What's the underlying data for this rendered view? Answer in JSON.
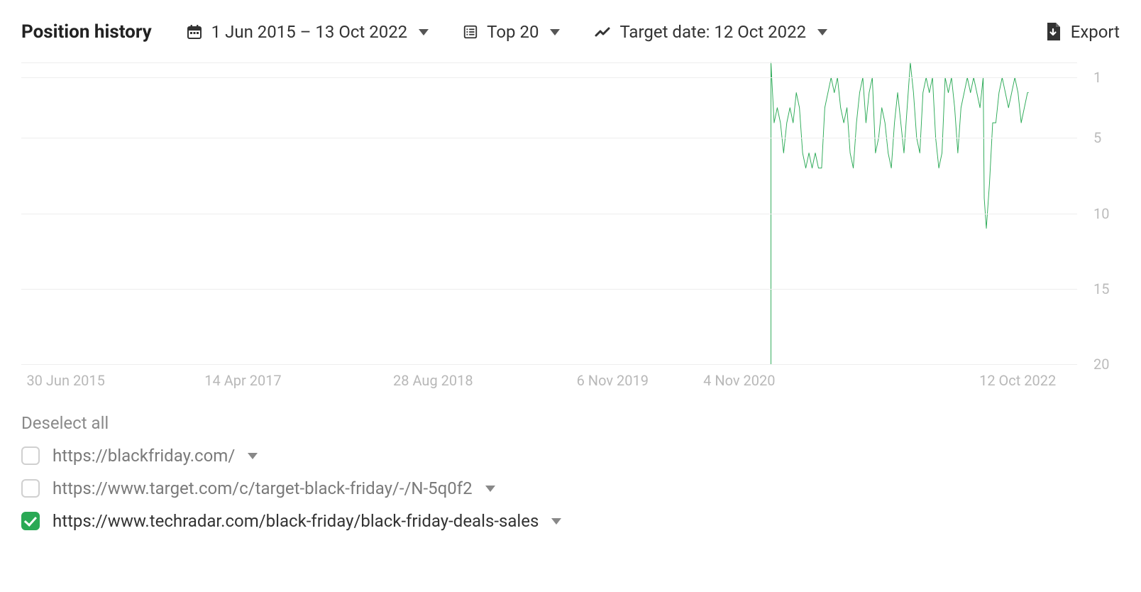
{
  "header": {
    "title": "Position history",
    "date_range_label": "1 Jun 2015 – 13 Oct 2022",
    "top_label": "Top 20",
    "target_date_label": "Target date: 12 Oct 2022",
    "export_label": "Export"
  },
  "chart": {
    "type": "line",
    "line_color": "#2aa955",
    "line_width": 4,
    "background_color": "#ffffff",
    "grid_color": "#eeeeee",
    "y_axis": {
      "inverted": true,
      "min": 0,
      "max": 20,
      "ticks": [
        1,
        5,
        10,
        15,
        20
      ]
    },
    "x_axis": {
      "min": 0,
      "max": 100,
      "tick_labels": [
        {
          "x": 0.5,
          "label": "30 Jun 2015",
          "align": "left"
        },
        {
          "x": 21,
          "label": "14 Apr 2017",
          "align": "center"
        },
        {
          "x": 39,
          "label": "28 Aug 2018",
          "align": "center"
        },
        {
          "x": 56,
          "label": "6 Nov 2019",
          "align": "center"
        },
        {
          "x": 68,
          "label": "4 Nov 2020",
          "align": "center"
        },
        {
          "x": 98,
          "label": "12 Oct 2022",
          "align": "right"
        }
      ]
    },
    "series": [
      {
        "name": "techradar",
        "color": "#2aa955",
        "points": [
          [
            71.0,
            20.0
          ],
          [
            71.0,
            0.0
          ],
          [
            71.3,
            4.0
          ],
          [
            71.6,
            3.0
          ],
          [
            71.9,
            4.0
          ],
          [
            72.2,
            6.0
          ],
          [
            72.5,
            4.0
          ],
          [
            72.8,
            3.0
          ],
          [
            73.1,
            4.0
          ],
          [
            73.4,
            2.0
          ],
          [
            73.7,
            3.0
          ],
          [
            74.0,
            6.0
          ],
          [
            74.3,
            7.0
          ],
          [
            74.6,
            6.0
          ],
          [
            74.9,
            7.0
          ],
          [
            75.2,
            6.0
          ],
          [
            75.5,
            7.0
          ],
          [
            75.8,
            7.0
          ],
          [
            76.1,
            3.0
          ],
          [
            76.4,
            2.0
          ],
          [
            76.7,
            1.0
          ],
          [
            77.0,
            2.0
          ],
          [
            77.3,
            1.0
          ],
          [
            77.6,
            3.0
          ],
          [
            77.9,
            4.0
          ],
          [
            78.2,
            3.0
          ],
          [
            78.5,
            6.0
          ],
          [
            78.8,
            7.0
          ],
          [
            79.1,
            4.0
          ],
          [
            79.4,
            2.0
          ],
          [
            79.7,
            1.0
          ],
          [
            80.0,
            4.0
          ],
          [
            80.3,
            2.0
          ],
          [
            80.6,
            1.0
          ],
          [
            80.9,
            6.0
          ],
          [
            81.2,
            5.0
          ],
          [
            81.5,
            3.0
          ],
          [
            81.8,
            4.0
          ],
          [
            82.1,
            6.0
          ],
          [
            82.4,
            7.0
          ],
          [
            82.7,
            4.0
          ],
          [
            83.0,
            2.0
          ],
          [
            83.3,
            4.0
          ],
          [
            83.6,
            6.0
          ],
          [
            83.9,
            3.0
          ],
          [
            84.2,
            0.0
          ],
          [
            84.5,
            2.0
          ],
          [
            84.8,
            5.0
          ],
          [
            85.1,
            6.0
          ],
          [
            85.4,
            2.0
          ],
          [
            85.7,
            1.0
          ],
          [
            86.0,
            2.0
          ],
          [
            86.3,
            1.0
          ],
          [
            86.6,
            5.0
          ],
          [
            86.9,
            7.0
          ],
          [
            87.2,
            6.0
          ],
          [
            87.5,
            1.0
          ],
          [
            87.8,
            2.0
          ],
          [
            88.1,
            1.0
          ],
          [
            88.4,
            3.0
          ],
          [
            88.7,
            6.0
          ],
          [
            89.0,
            3.0
          ],
          [
            89.3,
            2.0
          ],
          [
            89.6,
            1.0
          ],
          [
            89.9,
            2.0
          ],
          [
            90.2,
            1.0
          ],
          [
            90.5,
            2.0
          ],
          [
            90.8,
            3.0
          ],
          [
            91.1,
            1.0
          ],
          [
            91.2,
            9.0
          ],
          [
            91.4,
            11.0
          ],
          [
            91.7,
            8.0
          ],
          [
            92.0,
            4.0
          ],
          [
            92.3,
            4.0
          ],
          [
            92.6,
            2.0
          ],
          [
            92.9,
            1.0
          ],
          [
            93.2,
            2.0
          ],
          [
            93.5,
            3.0
          ],
          [
            93.8,
            2.0
          ],
          [
            94.1,
            1.0
          ],
          [
            94.4,
            2.0
          ],
          [
            94.7,
            4.0
          ],
          [
            95.0,
            3.0
          ],
          [
            95.3,
            2.0
          ],
          [
            95.4,
            2.0
          ]
        ]
      }
    ]
  },
  "legend": {
    "deselect_label": "Deselect all",
    "items": [
      {
        "checked": false,
        "url": "https://blackfriday.com/"
      },
      {
        "checked": false,
        "url": "https://www.target.com/c/target-black-friday/-/N-5q0f2"
      },
      {
        "checked": true,
        "url": "https://www.techradar.com/black-friday/black-friday-deals-sales"
      }
    ]
  },
  "colors": {
    "text": "#333333",
    "muted": "#b8b8b8",
    "accent": "#2aa955"
  }
}
